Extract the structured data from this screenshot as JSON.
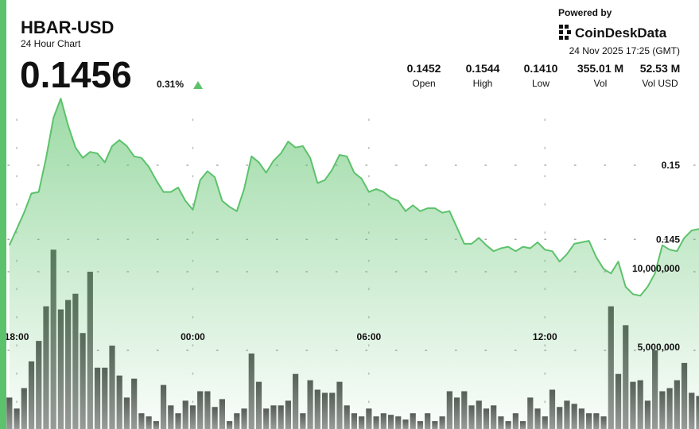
{
  "header": {
    "title": "HBAR-USD",
    "subtitle": "24 Hour Chart",
    "price": 0.1456,
    "change": "0.31%",
    "powered_by": "Powered by",
    "brand": "CoinDeskData",
    "timestamp": "24 Nov 2025 17:25 (GMT)",
    "stats": [
      {
        "value": "0.1452",
        "label": "Open"
      },
      {
        "value": "0.1544",
        "label": "High"
      },
      {
        "value": "0.1410",
        "label": "Low"
      },
      {
        "value": "355.01 M",
        "label": "Vol"
      },
      {
        "value": "52.53 M",
        "label": "Vol USD"
      }
    ]
  },
  "chart_data": {
    "type": "line",
    "x": [
      -0.25,
      0,
      0.25,
      0.5,
      0.75,
      1,
      1.25,
      1.5,
      1.75,
      2,
      2.25,
      2.5,
      2.75,
      3,
      3.25,
      3.5,
      3.75,
      4,
      4.25,
      4.5,
      4.75,
      5,
      5.25,
      5.5,
      5.75,
      6,
      6.25,
      6.5,
      6.75,
      7,
      7.25,
      7.5,
      7.75,
      8,
      8.25,
      8.5,
      8.75,
      9,
      9.25,
      9.5,
      9.75,
      10,
      10.25,
      10.5,
      10.75,
      11,
      11.25,
      11.5,
      11.75,
      12,
      12.25,
      12.5,
      12.75,
      13,
      13.25,
      13.5,
      13.75,
      14,
      14.25,
      14.5,
      14.75,
      15,
      15.25,
      15.5,
      15.75,
      16,
      16.25,
      16.5,
      16.75,
      17,
      17.25,
      17.5,
      17.75,
      18,
      18.25,
      18.5,
      18.75,
      19,
      19.25,
      19.5,
      19.75,
      20,
      20.25,
      20.5,
      20.75,
      21,
      21.25,
      21.5,
      21.75,
      22,
      22.25,
      22.5,
      22.75,
      23,
      23.25
    ],
    "series": [
      {
        "color": "#5cc26b",
        "values": [
          0.1446,
          0.1457,
          0.1468,
          0.1481,
          0.1482,
          0.1505,
          0.1532,
          0.1545,
          0.1527,
          0.1512,
          0.1505,
          0.1509,
          0.1508,
          0.1502,
          0.1513,
          0.1517,
          0.1513,
          0.1506,
          0.1505,
          0.1499,
          0.149,
          0.1482,
          0.1482,
          0.1485,
          0.1476,
          0.147,
          0.149,
          0.1496,
          0.1492,
          0.1476,
          0.1472,
          0.1469,
          0.1484,
          0.1506,
          0.1502,
          0.1495,
          0.1503,
          0.1508,
          0.1516,
          0.1512,
          0.1513,
          0.1505,
          0.1488,
          0.149,
          0.1497,
          0.1507,
          0.1506,
          0.1495,
          0.1491,
          0.1482,
          0.1484,
          0.1482,
          0.1478,
          0.1476,
          0.1469,
          0.1473,
          0.1469,
          0.1471,
          0.1471,
          0.1468,
          0.1469,
          0.1458,
          0.1447,
          0.1447,
          0.1451,
          0.1446,
          0.1442,
          0.1444,
          0.1445,
          0.1442,
          0.1445,
          0.1444,
          0.1448,
          0.1443,
          0.1442,
          0.1435,
          0.144,
          0.1447,
          0.1448,
          0.1449,
          0.1438,
          0.143,
          0.1427,
          0.1435,
          0.1418,
          0.1413,
          0.1412,
          0.1418,
          0.1427,
          0.1446,
          0.1443,
          0.1442,
          0.1451,
          0.1456,
          0.1457
        ]
      },
      {
        "type": "bar",
        "axis": "y2",
        "color": "#6b6b6b",
        "values": [
          2000000,
          1300000,
          2600000,
          4300000,
          5600000,
          7800000,
          11400000,
          7600000,
          8200000,
          8600000,
          6100000,
          10000000,
          3900000,
          3900000,
          5300000,
          3400000,
          2000000,
          3200000,
          1000000,
          800000,
          500000,
          2800000,
          1500000,
          1000000,
          1800000,
          1500000,
          2400000,
          2400000,
          1400000,
          1900000,
          500000,
          1000000,
          1300000,
          4800000,
          3000000,
          1300000,
          1500000,
          1500000,
          1800000,
          3500000,
          1000000,
          3100000,
          2500000,
          2300000,
          2300000,
          3000000,
          1500000,
          1000000,
          800000,
          1300000,
          800000,
          1000000,
          900000,
          800000,
          600000,
          1000000,
          500000,
          1000000,
          500000,
          800000,
          2400000,
          2000000,
          2400000,
          1500000,
          1800000,
          1300000,
          1500000,
          800000,
          500000,
          1000000,
          500000,
          2000000,
          1300000,
          800000,
          2500000,
          1400000,
          1800000,
          1600000,
          1300000,
          1000000,
          1000000,
          800000,
          7800000,
          3500000,
          6600000,
          3000000,
          3100000,
          1800000,
          5000000,
          2400000,
          2600000,
          3100000,
          4200000,
          2300000,
          2100000
        ]
      }
    ],
    "xlim": [
      -0.3,
      23.25
    ],
    "xticks": [
      {
        "value": 0,
        "label": "18:00"
      },
      {
        "value": 6,
        "label": "00:00"
      },
      {
        "value": 12,
        "label": "06:00"
      },
      {
        "value": 18,
        "label": "12:00"
      }
    ],
    "ylim": [
      0.1322,
      0.1559
    ],
    "yticks": [
      0.15,
      0.145
    ],
    "y2lim": [
      0,
      20000000
    ],
    "y2ticks": [
      {
        "value": 5000000,
        "label": "5,000,000"
      },
      {
        "value": 10000000,
        "label": "10,000,000"
      }
    ],
    "grid": true
  }
}
